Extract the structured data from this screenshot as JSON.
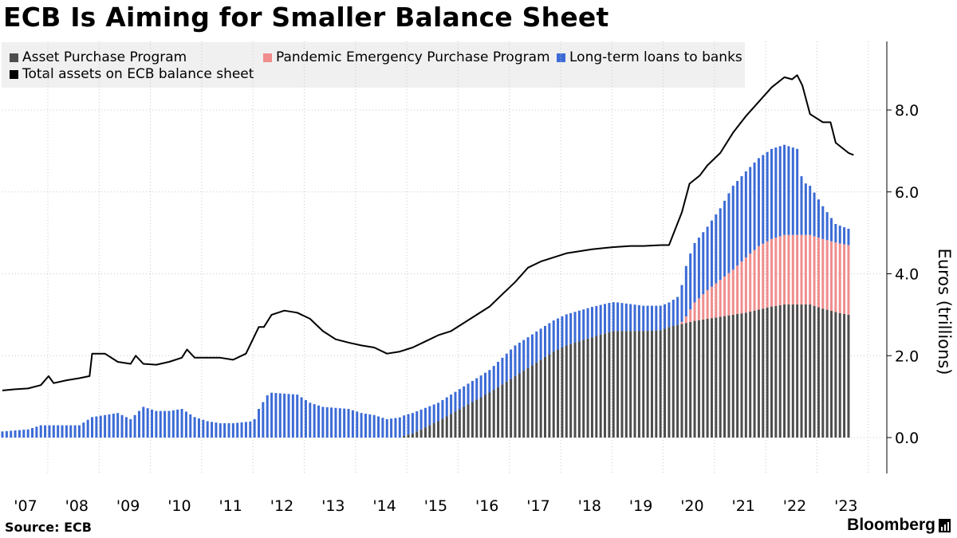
{
  "title": "ECB Is Aiming for Smaller Balance Sheet",
  "source": "Source: ECB",
  "brand": "Bloomberg",
  "colors": {
    "app": "#4d4d4d",
    "pepp": "#f08d8d",
    "ltro": "#3c6bd6",
    "total": "#000000",
    "legend_bg": "#f0f0f0"
  },
  "legend": [
    {
      "key": "app",
      "label": "Asset Purchase Program"
    },
    {
      "key": "pepp",
      "label": "Pandemic Emergency Purchase Program"
    },
    {
      "key": "ltro",
      "label": "Long-term loans to banks"
    },
    {
      "key": "total",
      "label": "Total assets on ECB balance sheet"
    }
  ],
  "chart_data": {
    "type": "bar",
    "stacked": true,
    "title": "ECB Is Aiming for Smaller Balance Sheet",
    "ylabel": "Euros (trillions)",
    "xlabel": "",
    "ylim": [
      -0.85,
      9.4
    ],
    "yticks": [
      0,
      2,
      4,
      6,
      8
    ],
    "ytick_labels": [
      "0.0",
      "2.0",
      "4.0",
      "6.0",
      "8.0"
    ],
    "x_range": [
      2007.0,
      2023.8
    ],
    "xticks": [
      "'07",
      "'08",
      "'09",
      "'10",
      "'11",
      "'12",
      "'13",
      "'14",
      "'15",
      "'16",
      "'17",
      "'18",
      "'19",
      "'20",
      "'21",
      "'22",
      "'23"
    ],
    "bar_series": [
      {
        "name": "Asset Purchase Program",
        "key": "app",
        "points": [
          [
            2007.0,
            0
          ],
          [
            2014.75,
            0
          ],
          [
            2014.85,
            0.05
          ],
          [
            2015.0,
            0.1
          ],
          [
            2015.5,
            0.4
          ],
          [
            2016.0,
            0.75
          ],
          [
            2016.5,
            1.1
          ],
          [
            2017.0,
            1.5
          ],
          [
            2017.5,
            1.9
          ],
          [
            2017.75,
            2.1
          ],
          [
            2018.0,
            2.25
          ],
          [
            2018.5,
            2.45
          ],
          [
            2018.9,
            2.6
          ],
          [
            2019.5,
            2.6
          ],
          [
            2019.85,
            2.62
          ],
          [
            2020.0,
            2.7
          ],
          [
            2020.5,
            2.85
          ],
          [
            2021.0,
            2.95
          ],
          [
            2021.5,
            3.05
          ],
          [
            2022.0,
            3.2
          ],
          [
            2022.25,
            3.25
          ],
          [
            2022.75,
            3.25
          ],
          [
            2023.0,
            3.15
          ],
          [
            2023.3,
            3.05
          ],
          [
            2023.5,
            3.0
          ]
        ]
      },
      {
        "name": "Pandemic Emergency Purchase Program",
        "key": "pepp",
        "points": [
          [
            2007.0,
            0
          ],
          [
            2020.2,
            0
          ],
          [
            2020.3,
            0.1
          ],
          [
            2020.5,
            0.45
          ],
          [
            2020.75,
            0.7
          ],
          [
            2021.0,
            0.9
          ],
          [
            2021.25,
            1.1
          ],
          [
            2021.5,
            1.35
          ],
          [
            2021.75,
            1.55
          ],
          [
            2022.0,
            1.65
          ],
          [
            2022.25,
            1.7
          ],
          [
            2023.5,
            1.7
          ]
        ]
      },
      {
        "name": "Long-term loans to banks",
        "key": "ltro",
        "points": [
          [
            2007.0,
            0.15
          ],
          [
            2007.5,
            0.2
          ],
          [
            2007.75,
            0.3
          ],
          [
            2008.5,
            0.3
          ],
          [
            2008.75,
            0.5
          ],
          [
            2009.0,
            0.55
          ],
          [
            2009.25,
            0.6
          ],
          [
            2009.5,
            0.45
          ],
          [
            2009.75,
            0.75
          ],
          [
            2010.0,
            0.65
          ],
          [
            2010.25,
            0.65
          ],
          [
            2010.5,
            0.7
          ],
          [
            2010.75,
            0.5
          ],
          [
            2011.0,
            0.4
          ],
          [
            2011.25,
            0.35
          ],
          [
            2011.5,
            0.35
          ],
          [
            2011.9,
            0.4
          ],
          [
            2012.0,
            0.7
          ],
          [
            2012.2,
            1.1
          ],
          [
            2012.75,
            1.05
          ],
          [
            2013.0,
            0.85
          ],
          [
            2013.25,
            0.75
          ],
          [
            2013.75,
            0.7
          ],
          [
            2014.0,
            0.6
          ],
          [
            2014.25,
            0.55
          ],
          [
            2014.5,
            0.45
          ],
          [
            2014.8,
            0.5
          ],
          [
            2015.0,
            0.5
          ],
          [
            2015.5,
            0.45
          ],
          [
            2016.0,
            0.5
          ],
          [
            2016.5,
            0.55
          ],
          [
            2017.0,
            0.75
          ],
          [
            2017.25,
            0.75
          ],
          [
            2017.5,
            0.76
          ],
          [
            2018.0,
            0.76
          ],
          [
            2018.5,
            0.74
          ],
          [
            2019.0,
            0.7
          ],
          [
            2019.5,
            0.62
          ],
          [
            2019.85,
            0.6
          ],
          [
            2020.0,
            0.6
          ],
          [
            2020.2,
            0.7
          ],
          [
            2020.35,
            1.3
          ],
          [
            2020.5,
            1.45
          ],
          [
            2020.75,
            1.55
          ],
          [
            2021.0,
            1.75
          ],
          [
            2021.25,
            2.05
          ],
          [
            2021.5,
            2.1
          ],
          [
            2021.75,
            2.15
          ],
          [
            2022.0,
            2.2
          ],
          [
            2022.25,
            2.2
          ],
          [
            2022.5,
            2.1
          ],
          [
            2022.6,
            1.3
          ],
          [
            2022.75,
            1.2
          ],
          [
            2023.0,
            0.8
          ],
          [
            2023.25,
            0.45
          ],
          [
            2023.5,
            0.4
          ]
        ]
      }
    ],
    "line_series": [
      {
        "name": "Total assets on ECB balance sheet",
        "key": "total",
        "points": [
          [
            2007.0,
            1.15
          ],
          [
            2007.25,
            1.18
          ],
          [
            2007.5,
            1.2
          ],
          [
            2007.75,
            1.28
          ],
          [
            2007.9,
            1.5
          ],
          [
            2008.0,
            1.33
          ],
          [
            2008.25,
            1.4
          ],
          [
            2008.5,
            1.45
          ],
          [
            2008.7,
            1.5
          ],
          [
            2008.75,
            2.05
          ],
          [
            2009.0,
            2.05
          ],
          [
            2009.25,
            1.85
          ],
          [
            2009.5,
            1.8
          ],
          [
            2009.6,
            2.0
          ],
          [
            2009.75,
            1.8
          ],
          [
            2010.0,
            1.78
          ],
          [
            2010.25,
            1.85
          ],
          [
            2010.5,
            1.95
          ],
          [
            2010.6,
            2.15
          ],
          [
            2010.75,
            1.95
          ],
          [
            2011.0,
            1.95
          ],
          [
            2011.25,
            1.95
          ],
          [
            2011.5,
            1.9
          ],
          [
            2011.75,
            2.05
          ],
          [
            2012.0,
            2.7
          ],
          [
            2012.1,
            2.7
          ],
          [
            2012.25,
            3.0
          ],
          [
            2012.5,
            3.1
          ],
          [
            2012.75,
            3.05
          ],
          [
            2013.0,
            2.9
          ],
          [
            2013.25,
            2.6
          ],
          [
            2013.5,
            2.4
          ],
          [
            2013.75,
            2.32
          ],
          [
            2014.0,
            2.25
          ],
          [
            2014.25,
            2.2
          ],
          [
            2014.5,
            2.05
          ],
          [
            2014.75,
            2.1
          ],
          [
            2015.0,
            2.2
          ],
          [
            2015.25,
            2.35
          ],
          [
            2015.5,
            2.5
          ],
          [
            2015.75,
            2.6
          ],
          [
            2016.0,
            2.8
          ],
          [
            2016.25,
            3.0
          ],
          [
            2016.5,
            3.2
          ],
          [
            2016.75,
            3.5
          ],
          [
            2017.0,
            3.8
          ],
          [
            2017.25,
            4.15
          ],
          [
            2017.5,
            4.3
          ],
          [
            2017.75,
            4.4
          ],
          [
            2018.0,
            4.5
          ],
          [
            2018.5,
            4.6
          ],
          [
            2018.9,
            4.65
          ],
          [
            2019.25,
            4.68
          ],
          [
            2019.5,
            4.68
          ],
          [
            2019.85,
            4.7
          ],
          [
            2020.0,
            4.7
          ],
          [
            2020.25,
            5.5
          ],
          [
            2020.4,
            6.2
          ],
          [
            2020.6,
            6.4
          ],
          [
            2020.75,
            6.65
          ],
          [
            2021.0,
            6.95
          ],
          [
            2021.25,
            7.45
          ],
          [
            2021.5,
            7.85
          ],
          [
            2021.75,
            8.2
          ],
          [
            2022.0,
            8.55
          ],
          [
            2022.25,
            8.8
          ],
          [
            2022.4,
            8.75
          ],
          [
            2022.5,
            8.85
          ],
          [
            2022.6,
            8.6
          ],
          [
            2022.75,
            7.9
          ],
          [
            2023.0,
            7.7
          ],
          [
            2023.15,
            7.7
          ],
          [
            2023.25,
            7.2
          ],
          [
            2023.5,
            6.95
          ],
          [
            2023.6,
            6.9
          ]
        ]
      }
    ]
  }
}
